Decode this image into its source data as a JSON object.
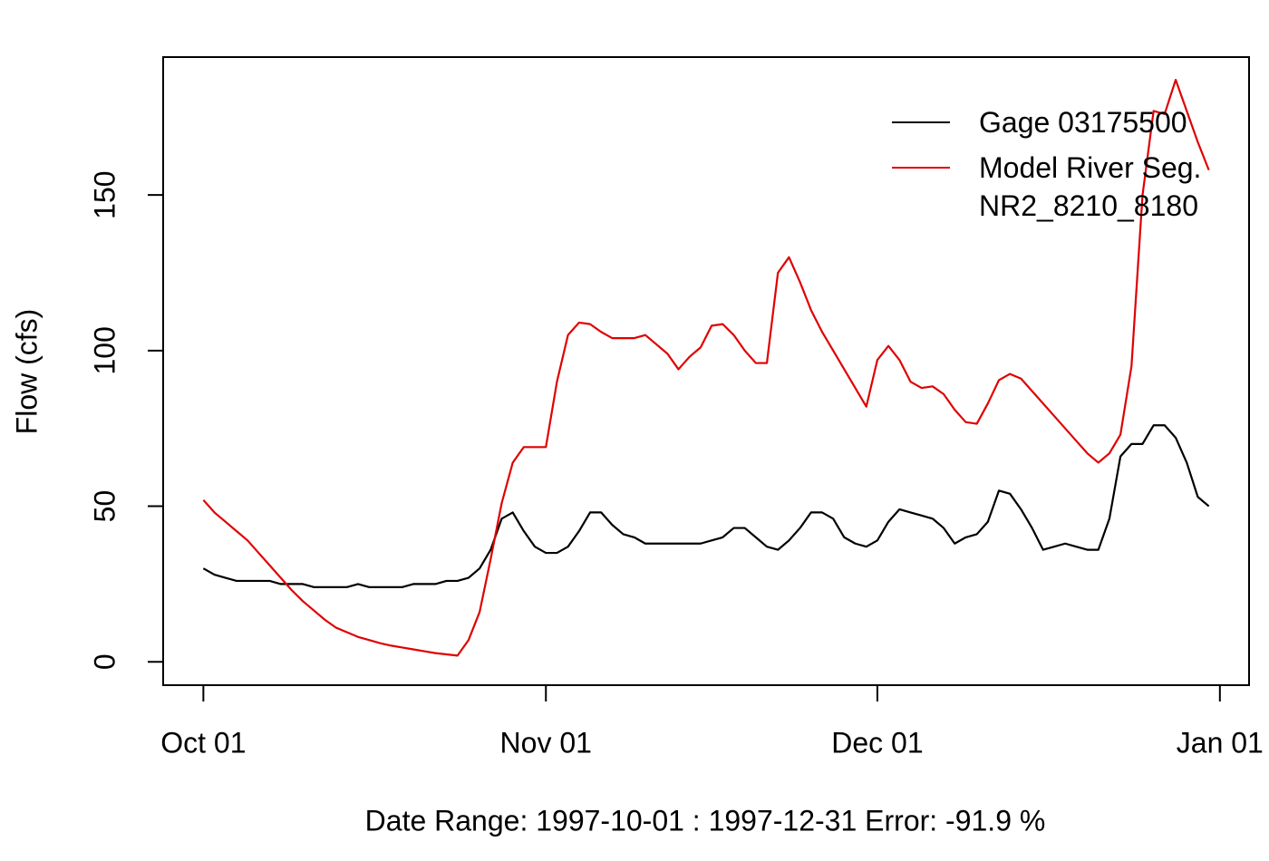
{
  "chart_data": {
    "type": "line",
    "xlabel": "Date Range: 1997-10-01 : 1997-12-31   Error: -91.9 %",
    "ylabel": "Flow (cfs)",
    "x": [
      0,
      1,
      2,
      3,
      4,
      5,
      6,
      7,
      8,
      9,
      10,
      11,
      12,
      13,
      14,
      15,
      16,
      17,
      18,
      19,
      20,
      21,
      22,
      23,
      24,
      25,
      26,
      27,
      28,
      29,
      30,
      31,
      32,
      33,
      34,
      35,
      36,
      37,
      38,
      39,
      40,
      41,
      42,
      43,
      44,
      45,
      46,
      47,
      48,
      49,
      50,
      51,
      52,
      53,
      54,
      55,
      56,
      57,
      58,
      59,
      60,
      61,
      62,
      63,
      64,
      65,
      66,
      67,
      68,
      69,
      70,
      71,
      72,
      73,
      74,
      75,
      76,
      77,
      78,
      79,
      80,
      81,
      82,
      83,
      84,
      85,
      86,
      87,
      88,
      89,
      90,
      91
    ],
    "series": [
      {
        "name": "Gage 03175500",
        "color": "#000000",
        "values": [
          30,
          28,
          27,
          26,
          26,
          26,
          26,
          25,
          25,
          25,
          24,
          24,
          24,
          24,
          25,
          24,
          24,
          24,
          24,
          25,
          25,
          25,
          26,
          26,
          27,
          30,
          36,
          46,
          48,
          42,
          37,
          35,
          35,
          37,
          42,
          48,
          48,
          44,
          41,
          40,
          38,
          38,
          38,
          38,
          38,
          38,
          39,
          40,
          43,
          43,
          40,
          37,
          36,
          39,
          43,
          48,
          48,
          46,
          40,
          38,
          37,
          39,
          45,
          49,
          48,
          47,
          46,
          43,
          38,
          40,
          41,
          45,
          55,
          54,
          49,
          43,
          36,
          37,
          38,
          37,
          36,
          36,
          46,
          66,
          70,
          70,
          76,
          76,
          72,
          64,
          53,
          50
        ]
      },
      {
        "name": "Model River Seg.\n NR2_8210_8180",
        "color": "#e00000",
        "values": [
          52,
          48,
          45,
          42,
          39,
          35,
          31,
          27,
          23,
          19.5,
          16.5,
          13.5,
          11,
          9.5,
          8,
          7,
          6,
          5.2,
          4.6,
          4,
          3.4,
          2.8,
          2.4,
          2,
          7,
          16,
          33,
          51,
          64,
          69,
          69,
          69,
          90,
          105,
          109,
          108.5,
          106,
          104,
          104,
          104,
          105,
          102,
          99,
          94,
          98,
          101,
          108,
          108.5,
          105,
          100,
          96,
          96,
          125,
          130,
          122,
          113,
          106,
          100,
          94,
          88,
          82,
          97,
          101.5,
          97,
          90,
          88,
          88.5,
          86,
          81,
          77,
          76.5,
          83,
          90.5,
          92.5,
          91,
          87,
          83,
          79,
          75,
          71,
          67,
          64,
          67,
          73,
          95,
          150,
          177,
          176,
          187,
          177,
          167,
          158
        ]
      }
    ],
    "xlim": [
      -3.64,
      94.64
    ],
    "xticks": [
      {
        "value": 0,
        "label": "Oct 01"
      },
      {
        "value": 31,
        "label": "Nov 01"
      },
      {
        "value": 61,
        "label": "Dec 01"
      },
      {
        "value": 92,
        "label": "Jan 01"
      }
    ],
    "ylim": [
      -7.5,
      194.3
    ],
    "yticks": [
      0,
      50,
      100,
      150
    ],
    "legend": "topright"
  }
}
